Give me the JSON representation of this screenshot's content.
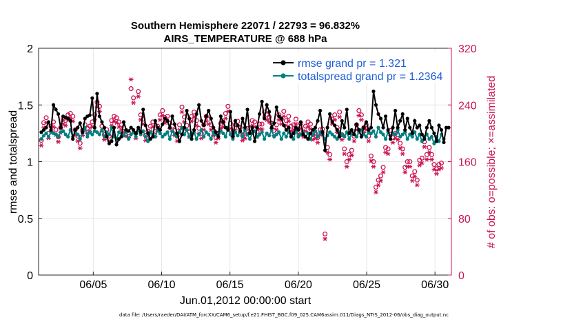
{
  "chart_data": {
    "type": "line",
    "title": [
      "Southern Hemisphere 22071 / 22793 = 96.832%",
      "AIRS_TEMPERATURE @ 688 hPa"
    ],
    "xlabel": "Jun.01,2012 00:00:00 start",
    "ylabel_left": "rmse and totalspread",
    "ylabel_right": "# of obs: o=possible; ×=assimilated",
    "xlim": [
      1,
      31.2
    ],
    "ylim_left": [
      0,
      2
    ],
    "ylim_right": [
      0,
      320
    ],
    "xticks": [
      {
        "x": 5,
        "label": "06/05"
      },
      {
        "x": 10,
        "label": "06/10"
      },
      {
        "x": 15,
        "label": "06/15"
      },
      {
        "x": 20,
        "label": "06/20"
      },
      {
        "x": 25,
        "label": "06/25"
      },
      {
        "x": 30,
        "label": "06/30"
      }
    ],
    "yticks_left": [
      "0",
      "0.5",
      "1",
      "1.5",
      "2"
    ],
    "yticks_right": [
      "0",
      "80",
      "160",
      "240",
      "320"
    ],
    "grid": true,
    "legend_position": "top-right",
    "footnote": "data file: /Users/raeder/DAI/ATM_forcXX/CAM6_setup/f.e21.FHIST_BGC.f09_025.CAM6assim.011/Diags_NTrS_2012-06/obs_diag_output.nc",
    "colors": {
      "rmse": "#000000",
      "spread": "#008080",
      "obs": "#cc1450",
      "legend_text": "#1f5fd6",
      "grid": "#e6e6e6"
    },
    "series": [
      {
        "name": "rmse grand pr = 1.321",
        "key": "rmse",
        "axis": "left",
        "values": [
          1.26,
          1.28,
          1.3,
          1.35,
          1.28,
          1.5,
          1.46,
          1.42,
          1.3,
          1.4,
          1.39,
          1.38,
          1.36,
          1.2,
          1.28,
          1.3,
          1.34,
          1.26,
          1.38,
          1.4,
          1.41,
          1.56,
          1.3,
          1.6,
          1.4,
          1.35,
          1.3,
          1.22,
          1.16,
          1.18,
          1.3,
          1.15,
          1.2,
          1.22,
          1.35,
          1.28,
          1.27,
          1.3,
          1.28,
          1.25,
          1.3,
          1.26,
          1.46,
          1.32,
          1.25,
          1.2,
          1.22,
          1.36,
          1.3,
          1.28,
          1.33,
          1.38,
          1.36,
          1.3,
          1.4,
          1.33,
          1.25,
          1.18,
          1.24,
          1.3,
          1.45,
          1.38,
          1.2,
          1.28,
          1.42,
          1.5,
          1.36,
          1.32,
          1.4,
          1.45,
          1.38,
          1.3,
          1.26,
          1.22,
          1.4,
          1.35,
          1.3,
          1.28,
          1.44,
          1.22,
          1.36,
          1.32,
          1.27,
          1.38,
          1.3,
          1.46,
          1.25,
          1.3,
          1.18,
          1.3,
          1.42,
          1.53,
          1.38,
          1.5,
          1.44,
          1.3,
          1.34,
          1.48,
          1.4,
          1.38,
          1.32,
          1.28,
          1.3,
          1.22,
          1.25,
          1.3,
          1.28,
          1.35,
          1.24,
          1.22,
          1.2,
          1.25,
          1.28,
          1.3,
          1.36,
          1.45,
          1.26,
          1.1,
          1.3,
          1.42,
          1.35,
          1.32,
          1.28,
          1.22,
          1.36,
          1.3,
          1.46,
          1.25,
          1.28,
          1.24,
          1.33,
          1.28,
          1.22,
          1.3,
          1.35,
          1.28,
          1.3,
          1.62,
          1.5,
          1.42,
          1.38,
          1.3,
          1.4,
          1.28,
          1.2,
          1.3,
          1.45,
          1.3,
          1.36,
          1.42,
          1.28,
          1.38,
          1.3,
          1.25,
          1.36,
          1.3,
          1.32,
          1.24,
          1.2,
          1.3,
          1.36,
          1.3,
          1.25,
          1.18,
          1.32,
          1.28,
          1.17,
          1.3,
          1.3
        ]
      },
      {
        "name": "totalspread grand pr = 1.2364",
        "key": "spread",
        "axis": "left",
        "values": [
          1.2,
          1.23,
          1.25,
          1.22,
          1.26,
          1.25,
          1.24,
          1.22,
          1.26,
          1.27,
          1.24,
          1.22,
          1.28,
          1.22,
          1.26,
          1.24,
          1.2,
          1.25,
          1.3,
          1.22,
          1.26,
          1.24,
          1.27,
          1.26,
          1.24,
          1.28,
          1.22,
          1.26,
          1.24,
          1.3,
          1.22,
          1.2,
          1.26,
          1.25,
          1.23,
          1.27,
          1.2,
          1.24,
          1.26,
          1.22,
          1.28,
          1.24,
          1.27,
          1.22,
          1.18,
          1.26,
          1.24,
          1.22,
          1.28,
          1.25,
          1.22,
          1.24,
          1.26,
          1.2,
          1.27,
          1.24,
          1.22,
          1.26,
          1.3,
          1.24,
          1.28,
          1.22,
          1.25,
          1.26,
          1.2,
          1.24,
          1.28,
          1.22,
          1.26,
          1.24,
          1.2,
          1.26,
          1.24,
          1.22,
          1.27,
          1.25,
          1.22,
          1.3,
          1.24,
          1.2,
          1.26,
          1.23,
          1.27,
          1.22,
          1.28,
          1.24,
          1.2,
          1.25,
          1.27,
          1.22,
          1.24,
          1.26,
          1.2,
          1.25,
          1.23,
          1.28,
          1.22,
          1.24,
          1.26,
          1.2,
          1.25,
          1.22,
          1.26,
          1.24,
          1.2,
          1.28,
          1.22,
          1.24,
          1.26,
          1.22,
          1.25,
          1.2,
          1.24,
          1.27,
          1.22,
          1.26,
          1.24,
          1.2,
          1.23,
          1.26,
          1.24,
          1.22,
          1.2,
          1.26,
          1.24,
          1.22,
          1.26,
          1.2,
          1.25,
          1.24,
          1.22,
          1.26,
          1.28,
          1.24,
          1.22,
          1.26,
          1.25,
          1.27,
          1.22,
          1.3,
          1.26,
          1.24,
          1.2,
          1.26,
          1.23,
          1.25,
          1.24,
          1.28,
          1.22,
          1.24,
          1.26,
          1.2,
          1.24,
          1.22,
          1.26,
          1.2,
          1.24,
          1.18,
          1.22,
          1.24,
          1.2,
          1.22,
          1.16,
          1.22,
          1.18,
          1.24,
          1.2
        ]
      },
      {
        "name": "obs possible",
        "key": "possible",
        "axis": "right",
        "marker": "o",
        "values": [
          190,
          215,
          222,
          200,
          210,
          216,
          205,
          195,
          208,
          220,
          218,
          226,
          228,
          224,
          205,
          196,
          186,
          204,
          212,
          207,
          210,
          216,
          226,
          244,
          238,
          210,
          198,
          205,
          196,
          218,
          224,
          222,
          216,
          212,
          208,
          203,
          201,
          263,
          250,
          200,
          259,
          226,
          220,
          197,
          203,
          210,
          216,
          203,
          210,
          226,
          232,
          222,
          224,
          214,
          210,
          204,
          196,
          212,
          237,
          223,
          211,
          202,
          224,
          230,
          218,
          207,
          200,
          212,
          224,
          220,
          212,
          204,
          194,
          200,
          214,
          216,
          228,
          238,
          214,
          202,
          212,
          217,
          208,
          197,
          200,
          207,
          207,
          218,
          216,
          202,
          213,
          213,
          230,
          226,
          223,
          214,
          204,
          212,
          226,
          220,
          231,
          218,
          224,
          210,
          212,
          220,
          206,
          214,
          202,
          210,
          216,
          213,
          198,
          200,
          194,
          205,
          206,
          58,
          180,
          170,
          220,
          226,
          208,
          230,
          198,
          178,
          160,
          170,
          176,
          196,
          212,
          232,
          226,
          208,
          212,
          196,
          168,
          160,
          124,
          134,
          140,
          152,
          180,
          178,
          204,
          194,
          200,
          198,
          186,
          178,
          152,
          160,
          160,
          140,
          146,
          134,
          162,
          165,
          188,
          170,
          180,
          170,
          156,
          150,
          156,
          158
        ]
      },
      {
        "name": "obs assimilated",
        "key": "assimilated",
        "axis": "right",
        "marker": "x",
        "values": [
          183,
          208,
          215,
          193,
          203,
          209,
          198,
          188,
          201,
          213,
          211,
          219,
          221,
          217,
          198,
          189,
          179,
          197,
          205,
          200,
          203,
          209,
          219,
          237,
          231,
          203,
          191,
          198,
          189,
          211,
          217,
          215,
          209,
          205,
          201,
          196,
          194,
          276,
          243,
          193,
          252,
          219,
          213,
          190,
          196,
          203,
          209,
          196,
          203,
          219,
          225,
          215,
          217,
          207,
          203,
          197,
          189,
          205,
          230,
          216,
          204,
          195,
          217,
          223,
          211,
          200,
          193,
          205,
          217,
          213,
          205,
          197,
          187,
          193,
          207,
          209,
          221,
          231,
          207,
          195,
          205,
          210,
          201,
          190,
          193,
          200,
          200,
          211,
          209,
          195,
          206,
          206,
          223,
          219,
          216,
          207,
          197,
          205,
          219,
          213,
          224,
          211,
          217,
          203,
          205,
          213,
          199,
          207,
          195,
          203,
          209,
          206,
          191,
          193,
          187,
          198,
          199,
          51,
          173,
          163,
          213,
          219,
          201,
          223,
          191,
          171,
          153,
          163,
          169,
          189,
          205,
          225,
          219,
          201,
          205,
          189,
          161,
          153,
          117,
          127,
          133,
          145,
          173,
          171,
          197,
          187,
          193,
          191,
          179,
          171,
          145,
          153,
          153,
          133,
          139,
          127,
          155,
          158,
          181,
          163,
          173,
          163,
          149,
          143,
          149,
          151
        ]
      }
    ]
  }
}
